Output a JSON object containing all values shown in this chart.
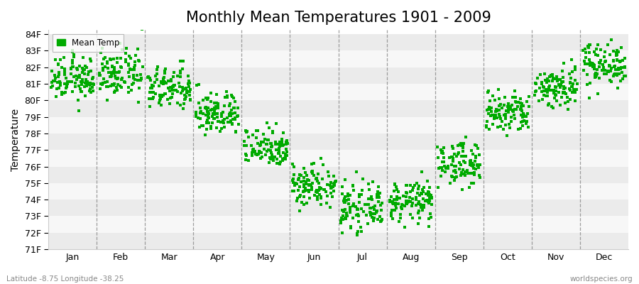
{
  "title": "Monthly Mean Temperatures 1901 - 2009",
  "ylabel": "Temperature",
  "xlabel_bottom_left": "Latitude -8.75 Longitude -38.25",
  "xlabel_bottom_right": "worldspecies.org",
  "months": [
    "Jan",
    "Feb",
    "Mar",
    "Apr",
    "May",
    "Jun",
    "Jul",
    "Aug",
    "Sep",
    "Oct",
    "Nov",
    "Dec"
  ],
  "ytick_labels": [
    "71F",
    "72F",
    "73F",
    "74F",
    "75F",
    "76F",
    "77F",
    "78F",
    "79F",
    "80F",
    "81F",
    "82F",
    "83F",
    "84F"
  ],
  "ytick_values": [
    71,
    72,
    73,
    74,
    75,
    76,
    77,
    78,
    79,
    80,
    81,
    82,
    83,
    84
  ],
  "ylim_min": 71,
  "ylim_max": 84,
  "marker_color": "#00AA00",
  "marker_size": 2.5,
  "legend_label": "Mean Temp",
  "band_color_even": "#EBEBEB",
  "band_color_odd": "#F7F7F7",
  "title_fontsize": 15,
  "years": 109,
  "monthly_means": [
    81.3,
    81.6,
    80.7,
    79.2,
    77.2,
    74.9,
    73.5,
    73.9,
    76.2,
    79.2,
    80.8,
    82.2
  ],
  "monthly_stds": [
    0.65,
    0.7,
    0.65,
    0.65,
    0.6,
    0.65,
    0.65,
    0.6,
    0.65,
    0.65,
    0.65,
    0.65
  ]
}
